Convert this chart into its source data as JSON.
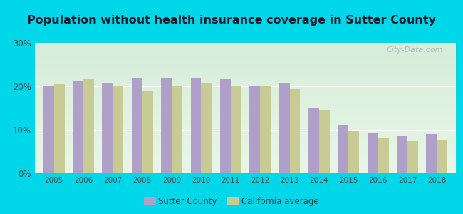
{
  "title": "Population without health insurance coverage in Sutter County",
  "years": [
    2005,
    2006,
    2007,
    2008,
    2009,
    2010,
    2011,
    2012,
    2013,
    2014,
    2015,
    2016,
    2017,
    2018
  ],
  "sutter_county": [
    20.0,
    21.2,
    20.9,
    22.0,
    21.8,
    21.8,
    21.7,
    20.1,
    20.9,
    14.9,
    11.1,
    9.2,
    8.5,
    9.0
  ],
  "california_avg": [
    20.5,
    21.6,
    20.1,
    19.0,
    20.2,
    20.9,
    20.1,
    20.1,
    19.3,
    14.6,
    9.8,
    8.0,
    7.5,
    7.7
  ],
  "sutter_color": "#b09fc8",
  "california_color": "#c8cc94",
  "background_outer": "#00d8ea",
  "background_inner_top": "#f0f8f0",
  "background_inner_bottom": "#e0f0e0",
  "ylim": [
    0,
    30
  ],
  "yticks": [
    0,
    10,
    20,
    30
  ],
  "bar_width": 0.36,
  "legend_sutter": "Sutter County",
  "legend_california": "California average",
  "watermark": "City-Data.com",
  "title_fontsize": 11.5,
  "title_color": "#1a1a2e"
}
